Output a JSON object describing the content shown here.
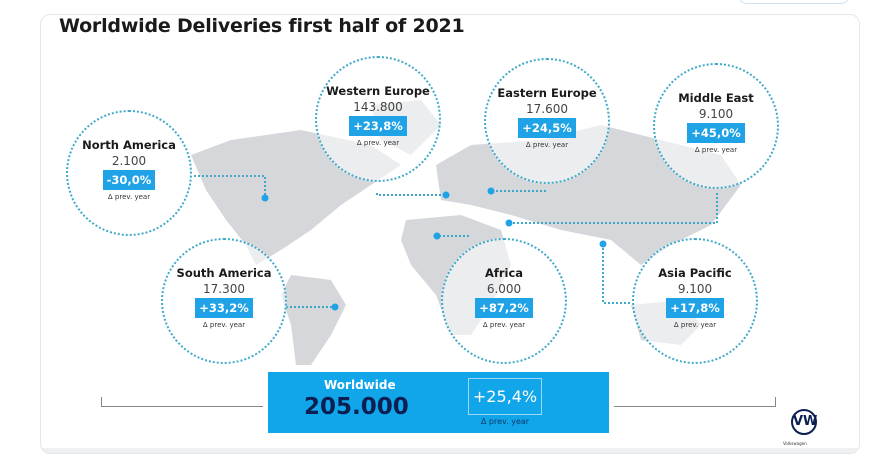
{
  "title": "Worldwide Deliveries first half of 2021",
  "prev_label": "Δ prev. year",
  "regions": [
    {
      "name": "North America",
      "value": "2.100",
      "change": "-30,0%"
    },
    {
      "name": "Western Europe",
      "value": "143.800",
      "change": "+23,8%"
    },
    {
      "name": "Eastern Europe",
      "value": "17.600",
      "change": "+24,5%"
    },
    {
      "name": "Middle East",
      "value": "9.100",
      "change": "+45,0%"
    },
    {
      "name": "South America",
      "value": "17.300",
      "change": "+33,2%"
    },
    {
      "name": "Africa",
      "value": "6.000",
      "change": "+87,2%"
    },
    {
      "name": "Asia Pacific",
      "value": "9.100",
      "change": "+17,8%"
    }
  ],
  "worldwide": {
    "label": "Worldwide",
    "value": "205.000",
    "change": "+25,4%"
  },
  "brand": {
    "logo": "VW",
    "tagline": "Volkswagen"
  },
  "colors": {
    "accent": "#1fa2e6",
    "navy": "#0b1f52",
    "map": "#d3d5d8",
    "dots": "#3fa9c9"
  }
}
